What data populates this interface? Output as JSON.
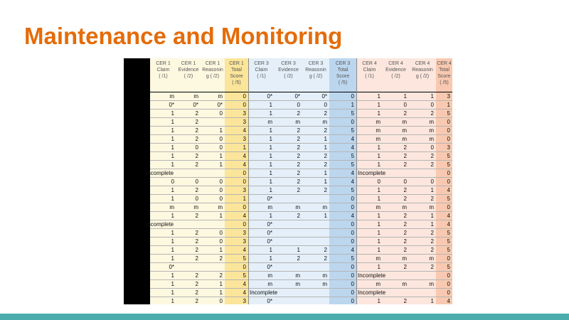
{
  "title": "Maintenance and Monitoring",
  "colors": {
    "title": "#e46c0a",
    "footer": "#4bacac"
  },
  "columns": [
    {
      "h": [
        "CER 1",
        "Claim",
        "(  /1)"
      ],
      "bg": "#fdf8e0"
    },
    {
      "h": [
        "CER 1",
        "Evidence",
        "(  /2)"
      ],
      "bg": "#fdf8e0"
    },
    {
      "h": [
        "CER 1",
        "Reasonin",
        "g (  /2)"
      ],
      "bg": "#fdf8e0"
    },
    {
      "h": [
        "CER 1",
        "Total",
        "Score",
        "(  /5)"
      ],
      "bg": "#fbe59a"
    },
    {
      "h": [
        "CER 3",
        "Claim",
        "(  /1)"
      ],
      "bg": "#e4eff9"
    },
    {
      "h": [
        "CER 3",
        "Evidence",
        "(  /2)"
      ],
      "bg": "#e4eff9"
    },
    {
      "h": [
        "CER 3",
        "Reasonin",
        "g (  /2)"
      ],
      "bg": "#e4eff9"
    },
    {
      "h": [
        "CER 3",
        "Total",
        "Score",
        "(  /5)"
      ],
      "bg": "#bcd6ee"
    },
    {
      "h": [
        "CER 4",
        "Claim",
        "(  /1)"
      ],
      "bg": "#fce6dd"
    },
    {
      "h": [
        "CER 4",
        "Evidence",
        "(  /2)"
      ],
      "bg": "#fce6dd"
    },
    {
      "h": [
        "CER 4",
        "Reasonin",
        "g (  /2)"
      ],
      "bg": "#fce6dd"
    },
    {
      "h": [
        "CER 4",
        "Total",
        "Score",
        "(  /5)"
      ],
      "bg": "#f8c9b0"
    }
  ],
  "rows": [
    [
      "m",
      "m",
      "m",
      "0",
      "0*",
      "0*",
      "0*",
      "0",
      "1",
      "1",
      "1",
      "3"
    ],
    [
      "0*",
      "0*",
      "0*",
      "0",
      "1",
      "0",
      "0",
      "1",
      "1",
      "0",
      "0",
      "1"
    ],
    [
      "1",
      "2",
      "0",
      "3",
      "1",
      "2",
      "2",
      "5",
      "1",
      "2",
      "2",
      "5"
    ],
    [
      "1",
      "2",
      "",
      "3",
      "m",
      "m",
      "m",
      "0",
      "m",
      "m",
      "m",
      "0"
    ],
    [
      "1",
      "2",
      "1",
      "4",
      "1",
      "2",
      "2",
      "5",
      "m",
      "m",
      "m",
      "0"
    ],
    [
      "1",
      "2",
      "0",
      "3",
      "1",
      "2",
      "1",
      "4",
      "m",
      "m",
      "m",
      "0"
    ],
    [
      "1",
      "0",
      "0",
      "1",
      "1",
      "2",
      "1",
      "4",
      "1",
      "2",
      "0",
      "3"
    ],
    [
      "1",
      "2",
      "1",
      "4",
      "1",
      "2",
      "2",
      "5",
      "1",
      "2",
      "2",
      "5"
    ],
    [
      "1",
      "2",
      "1",
      "4",
      "1",
      "2",
      "2",
      "5",
      "1",
      "2",
      "2",
      "5"
    ],
    [
      "Incomplete",
      "",
      "",
      "0",
      "1",
      "2",
      "1",
      "4",
      "Incomplete",
      "",
      "",
      "0"
    ],
    [
      "0",
      "0",
      "0",
      "0",
      "1",
      "2",
      "1",
      "4",
      "0",
      "0",
      "0",
      "0"
    ],
    [
      "1",
      "2",
      "0",
      "3",
      "1",
      "2",
      "2",
      "5",
      "1",
      "2",
      "1",
      "4"
    ],
    [
      "1",
      "0",
      "0",
      "1",
      "0*",
      "",
      "",
      "0",
      "1",
      "2",
      "2",
      "5"
    ],
    [
      "m",
      "m",
      "m",
      "0",
      "m",
      "m",
      "m",
      "0",
      "m",
      "m",
      "m",
      "0"
    ],
    [
      "1",
      "2",
      "1",
      "4",
      "1",
      "2",
      "1",
      "4",
      "1",
      "2",
      "1",
      "4"
    ],
    [
      "Incomplete",
      "",
      "",
      "0",
      "0*",
      "",
      "",
      "0",
      "1",
      "2",
      "1",
      "4"
    ],
    [
      "1",
      "2",
      "0",
      "3",
      "0*",
      "",
      "",
      "0",
      "1",
      "2",
      "2",
      "5"
    ],
    [
      "1",
      "2",
      "0",
      "3",
      "0*",
      "",
      "",
      "0",
      "1",
      "2",
      "2",
      "5"
    ],
    [
      "1",
      "2",
      "1",
      "4",
      "1",
      "1",
      "2",
      "4",
      "1",
      "2",
      "2",
      "5"
    ],
    [
      "1",
      "2",
      "2",
      "5",
      "1",
      "2",
      "2",
      "5",
      "m",
      "m",
      "m",
      "0"
    ],
    [
      "0*",
      "",
      "",
      "0",
      "0*",
      "",
      "",
      "0",
      "1",
      "2",
      "2",
      "5"
    ],
    [
      "1",
      "2",
      "2",
      "5",
      "m",
      "m",
      "m",
      "0",
      "Incomplete",
      "",
      "",
      "0"
    ],
    [
      "1",
      "2",
      "1",
      "4",
      "m",
      "m",
      "m",
      "0",
      "m",
      "m",
      "m",
      "0"
    ],
    [
      "1",
      "2",
      "1",
      "4",
      "Incomplete",
      "",
      "",
      "0",
      "Incomplete",
      "",
      "",
      "0"
    ],
    [
      "1",
      "2",
      "0",
      "3",
      "0*",
      "",
      "",
      "0",
      "1",
      "2",
      "1",
      "4"
    ]
  ]
}
